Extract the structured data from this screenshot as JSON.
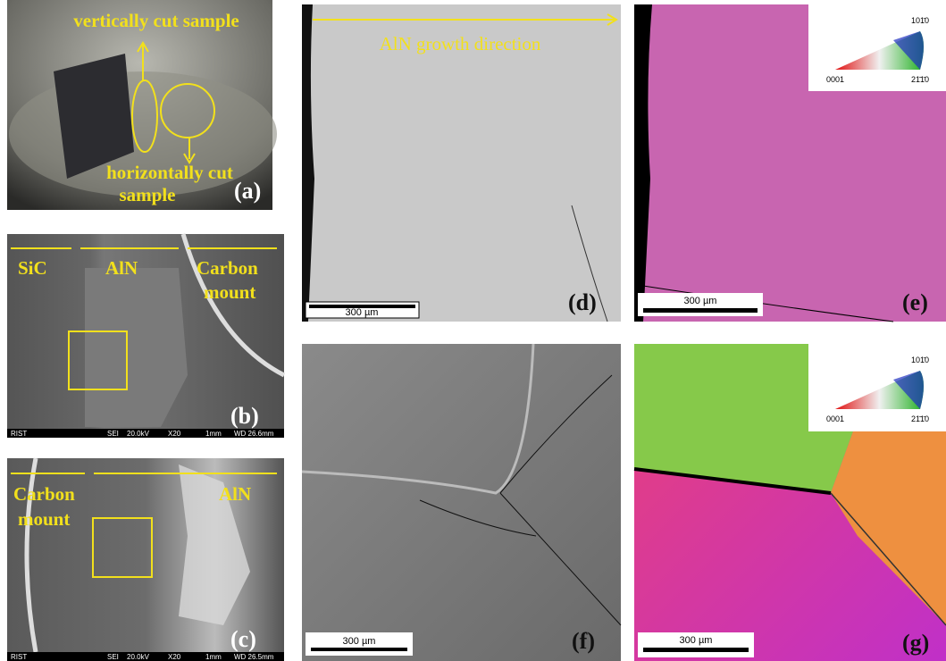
{
  "panel_a": {
    "label": "(a)",
    "annotations": [
      "vertically cut sample",
      "horizontally cut",
      "sample"
    ]
  },
  "panel_b": {
    "label": "(b)",
    "annotations": [
      "SiC",
      "AlN",
      "Carbon",
      "mount"
    ],
    "info_bar": [
      "RIST",
      "SEI",
      "20.0kV",
      "X20",
      "1mm",
      "WD 26.6mm"
    ]
  },
  "panel_c": {
    "label": "(c)",
    "annotations": [
      "Carbon",
      "mount",
      "AlN"
    ],
    "info_bar": [
      "RIST",
      "SEI",
      "20.0kV",
      "X20",
      "1mm",
      "WD 26.5mm"
    ]
  },
  "panel_d": {
    "label": "(d)",
    "annotation": "AlN growth direction",
    "scale_bar": "300 µm"
  },
  "panel_e": {
    "label": "(e)",
    "scale_bar": "300 µm",
    "legend": [
      "101̄0",
      "0001",
      "21̄1̄0"
    ]
  },
  "panel_f": {
    "label": "(f)",
    "scale_bar": "300 µm"
  },
  "panel_g": {
    "label": "(g)",
    "scale_bar": "300 µm",
    "legend": [
      "101̄0",
      "0001",
      "21̄1̄0"
    ]
  }
}
